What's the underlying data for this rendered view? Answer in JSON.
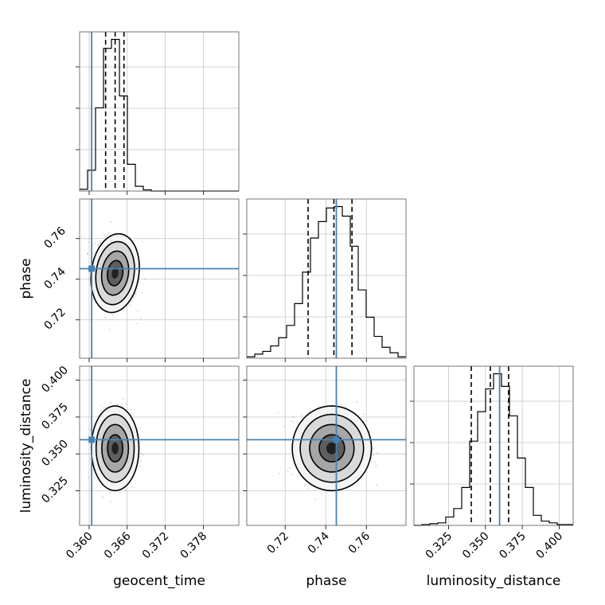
{
  "chart_data": {
    "type": "corner",
    "parameters": [
      "geocent_time",
      "phase",
      "luminosity_distance"
    ],
    "ranges": {
      "geocent_time": [
        0.3585,
        0.3836
      ],
      "phase": [
        0.7011,
        0.7795
      ],
      "luminosity_distance": [
        0.3015,
        0.4095
      ]
    },
    "ticks": {
      "geocent_time": [
        "0.360",
        "0.366",
        "0.372",
        "0.378"
      ],
      "phase": [
        "0.72",
        "0.74",
        "0.76"
      ],
      "luminosity_distance": [
        "0.325",
        "0.350",
        "0.375",
        "0.400"
      ]
    },
    "truths": {
      "geocent_time": 0.3604,
      "phase": 0.7452,
      "luminosity_distance": 0.3596
    },
    "quantiles": {
      "geocent_time": [
        0.3626,
        0.3641,
        0.3655
      ],
      "phase": [
        0.7313,
        0.744,
        0.7529
      ],
      "luminosity_distance": [
        0.3404,
        0.3533,
        0.3657
      ]
    },
    "histograms": {
      "geocent_time": {
        "bin_edges": [
          0.3585,
          0.35976,
          0.36101,
          0.36227,
          0.36352,
          0.36478,
          0.36603,
          0.36729,
          0.36854,
          0.3698,
          0.37105,
          0.37231,
          0.37356,
          0.37482,
          0.37607,
          0.37733,
          0.37858,
          0.37984,
          0.38109,
          0.38235,
          0.3836
        ],
        "counts": [
          3,
          35,
          140,
          240,
          255,
          160,
          45,
          8,
          2,
          0,
          0,
          0,
          0,
          0,
          0,
          0,
          0,
          0,
          0,
          0
        ]
      },
      "phase": {
        "bin_edges": [
          0.7011,
          0.70502,
          0.70894,
          0.71286,
          0.71678,
          0.7207,
          0.72462,
          0.72854,
          0.73246,
          0.73638,
          0.7403,
          0.74422,
          0.74814,
          0.75206,
          0.75598,
          0.7599,
          0.76382,
          0.76774,
          0.77166,
          0.77558,
          0.7795
        ],
        "counts": [
          1,
          3,
          5,
          9,
          15,
          24,
          40,
          63,
          88,
          100,
          110,
          111,
          104,
          82,
          50,
          30,
          16,
          8,
          4,
          1
        ]
      },
      "luminosity_distance": {
        "bin_edges": [
          0.3015,
          0.3069,
          0.3123,
          0.3177,
          0.3231,
          0.3285,
          0.3339,
          0.3393,
          0.3447,
          0.3501,
          0.3555,
          0.3609,
          0.3663,
          0.3717,
          0.3771,
          0.3825,
          0.3879,
          0.3933,
          0.3987,
          0.4041,
          0.4095
        ],
        "counts": [
          0,
          1,
          2,
          3,
          10,
          20,
          45,
          100,
          135,
          162,
          180,
          165,
          130,
          80,
          45,
          12,
          5,
          3,
          1,
          1
        ]
      }
    },
    "grid": true
  }
}
